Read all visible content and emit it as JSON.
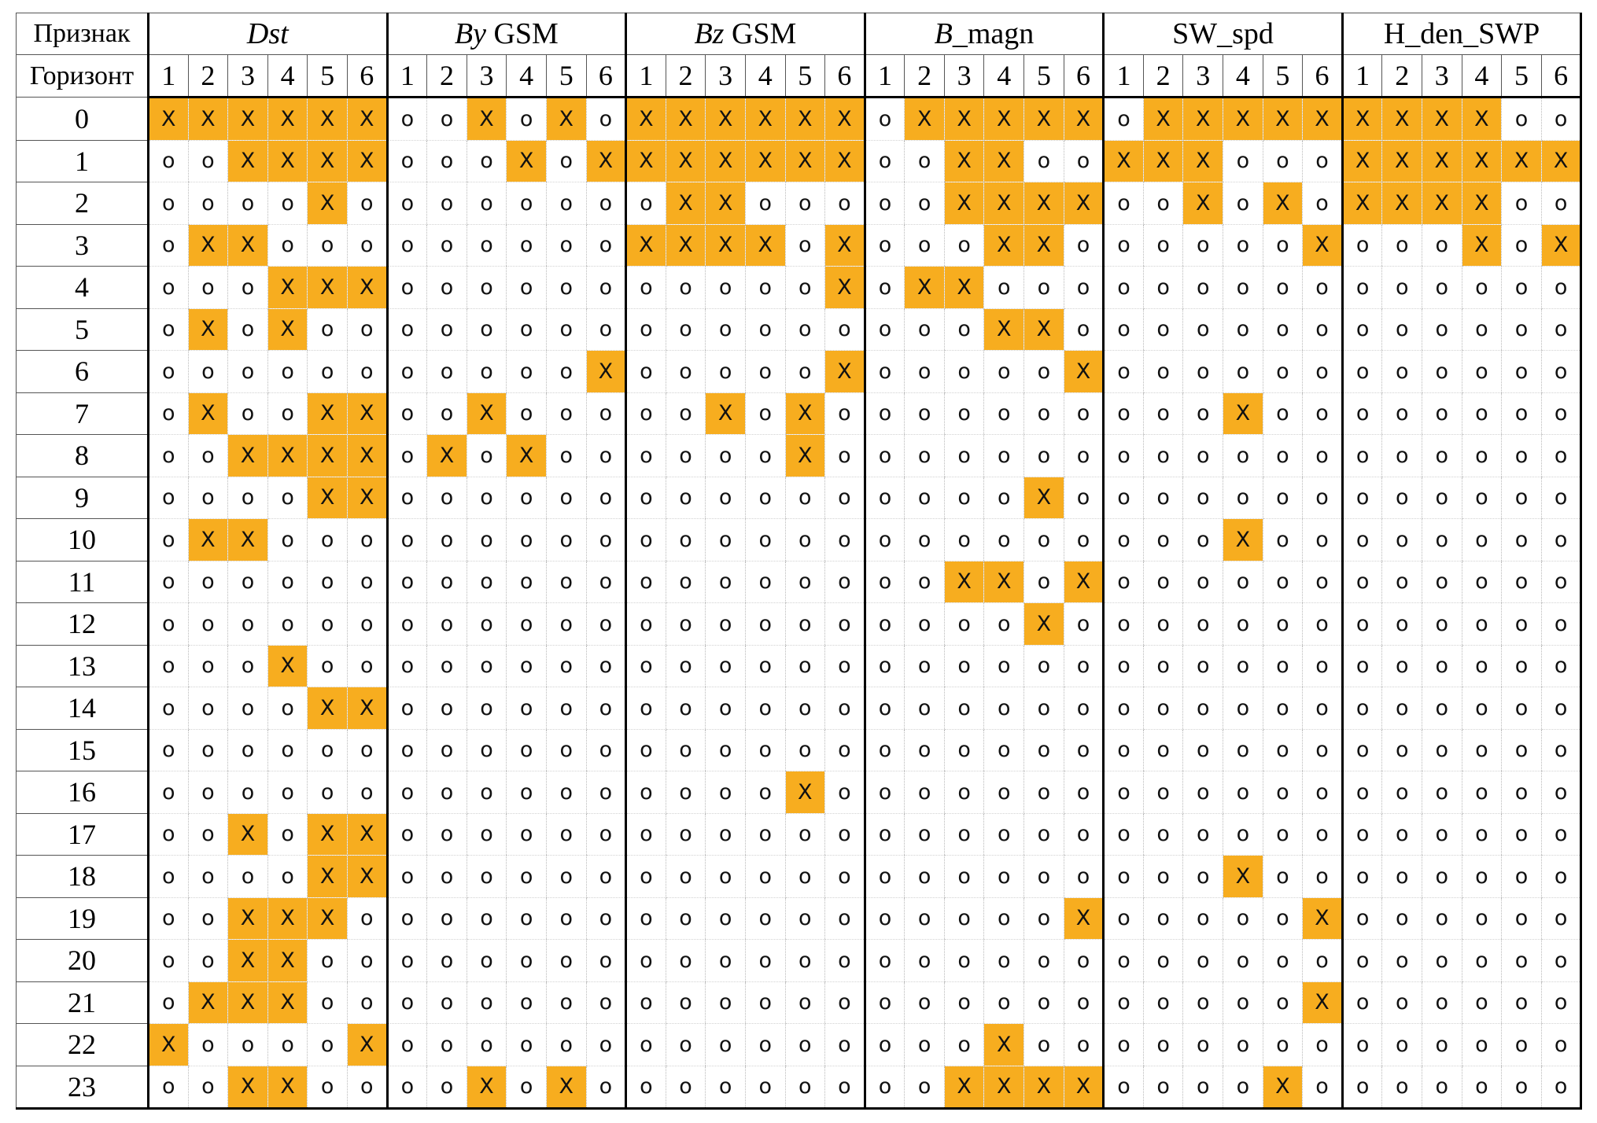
{
  "table": {
    "corner_label_top": "Признак",
    "corner_label_bottom": "Горизонт",
    "features": [
      {
        "prefix": "Dst",
        "prefix_italic": true,
        "suffix": ""
      },
      {
        "prefix": "By",
        "prefix_italic": true,
        "suffix": " GSM"
      },
      {
        "prefix": "Bz",
        "prefix_italic": true,
        "suffix": " GSM"
      },
      {
        "prefix": "B",
        "prefix_italic": true,
        "suffix": "_magn"
      },
      {
        "prefix": "",
        "prefix_italic": false,
        "suffix": "SW_spd"
      },
      {
        "prefix": "",
        "prefix_italic": false,
        "suffix": "H_den_SWP"
      }
    ],
    "horizons": [
      "1",
      "2",
      "3",
      "4",
      "5",
      "6"
    ],
    "marker_yes": "X",
    "marker_no": "o",
    "highlight_color": "#f7ad1f",
    "rows": [
      {
        "label": "0",
        "cells": [
          "XXXXXX",
          "ooXoXo",
          "XXXXXX",
          "oXXXXX",
          "oXXXXX",
          "XXXXoo"
        ]
      },
      {
        "label": "1",
        "cells": [
          "ooXXXX",
          "oooXoX",
          "XXXXXX",
          "ooXXoo",
          "XXXooo",
          "XXXXXX"
        ]
      },
      {
        "label": "2",
        "cells": [
          "ooooXo",
          "oooooo",
          "oXXooo",
          "ooXXXX",
          "ooXoXo",
          "XXXXoo"
        ]
      },
      {
        "label": "3",
        "cells": [
          "oXXooo",
          "oooooo",
          "XXXXoX",
          "oooXXo",
          "oooooX",
          "oooXoX"
        ]
      },
      {
        "label": "4",
        "cells": [
          "oooXXX",
          "oooooo",
          "oooooX",
          "oXXooo",
          "oooooo",
          "oooooo"
        ]
      },
      {
        "label": "5",
        "cells": [
          "oXoXoo",
          "oooooo",
          "oooooo",
          "oooXXo",
          "oooooo",
          "oooooo"
        ]
      },
      {
        "label": "6",
        "cells": [
          "oooooo",
          "oooooX",
          "oooooX",
          "oooooX",
          "oooooo",
          "oooooo"
        ]
      },
      {
        "label": "7",
        "cells": [
          "oXooXX",
          "ooXooo",
          "ooXoXo",
          "oooooo",
          "oooXoo",
          "oooooo"
        ]
      },
      {
        "label": "8",
        "cells": [
          "ooXXXX",
          "oXoXoo",
          "ooooXo",
          "oooooo",
          "oooooo",
          "oooooo"
        ]
      },
      {
        "label": "9",
        "cells": [
          "ooooXX",
          "oooooo",
          "oooooo",
          "ooooXo",
          "oooooo",
          "oooooo"
        ]
      },
      {
        "label": "10",
        "cells": [
          "oXXooo",
          "oooooo",
          "oooooo",
          "oooooo",
          "oooXoo",
          "oooooo"
        ]
      },
      {
        "label": "11",
        "cells": [
          "oooooo",
          "oooooo",
          "oooooo",
          "ooXXoX",
          "oooooo",
          "oooooo"
        ]
      },
      {
        "label": "12",
        "cells": [
          "oooooo",
          "oooooo",
          "oooooo",
          "ooooXo",
          "oooooo",
          "oooooo"
        ]
      },
      {
        "label": "13",
        "cells": [
          "oooXoo",
          "oooooo",
          "oooooo",
          "oooooo",
          "oooooo",
          "oooooo"
        ]
      },
      {
        "label": "14",
        "cells": [
          "ooooXX",
          "oooooo",
          "oooooo",
          "oooooo",
          "oooooo",
          "oooooo"
        ]
      },
      {
        "label": "15",
        "cells": [
          "oooooo",
          "oooooo",
          "oooooo",
          "oooooo",
          "oooooo",
          "oooooo"
        ]
      },
      {
        "label": "16",
        "cells": [
          "oooooo",
          "oooooo",
          "ooooXo",
          "oooooo",
          "oooooo",
          "oooooo"
        ]
      },
      {
        "label": "17",
        "cells": [
          "ooXoXX",
          "oooooo",
          "oooooo",
          "oooooo",
          "oooooo",
          "oooooo"
        ]
      },
      {
        "label": "18",
        "cells": [
          "ooooXX",
          "oooooo",
          "oooooo",
          "oooooo",
          "oooXoo",
          "oooooo"
        ]
      },
      {
        "label": "19",
        "cells": [
          "ooXXXo",
          "oooooo",
          "oooooo",
          "oooooX",
          "oooooX",
          "oooooo"
        ]
      },
      {
        "label": "20",
        "cells": [
          "ooXXoo",
          "oooooo",
          "oooooo",
          "oooooo",
          "oooooo",
          "oooooo"
        ]
      },
      {
        "label": "21",
        "cells": [
          "oXXXoo",
          "oooooo",
          "oooooo",
          "oooooo",
          "oooooX",
          "oooooo"
        ]
      },
      {
        "label": "22",
        "cells": [
          "XooooX",
          "oooooo",
          "oooooo",
          "oooXoo",
          "oooooo",
          "oooooo"
        ]
      },
      {
        "label": "23",
        "cells": [
          "ooXXoo",
          "ooXoXo",
          "oooooo",
          "ooXXXX",
          "ooooXo",
          "oooooo"
        ]
      }
    ]
  }
}
